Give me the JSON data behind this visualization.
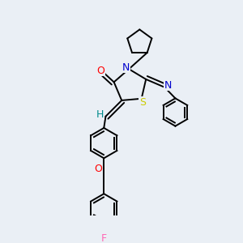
{
  "bg_color": "#eaeff5",
  "bond_color": "#000000",
  "atom_colors": {
    "O": "#ff0000",
    "N": "#0000cd",
    "S": "#cccc00",
    "F": "#ff69b4",
    "H": "#008b8b",
    "C": "#000000"
  },
  "bond_width": 1.4,
  "figsize": [
    3.0,
    3.0
  ],
  "dpi": 100,
  "xlim": [
    0.0,
    1.0
  ],
  "ylim": [
    0.0,
    1.0
  ]
}
